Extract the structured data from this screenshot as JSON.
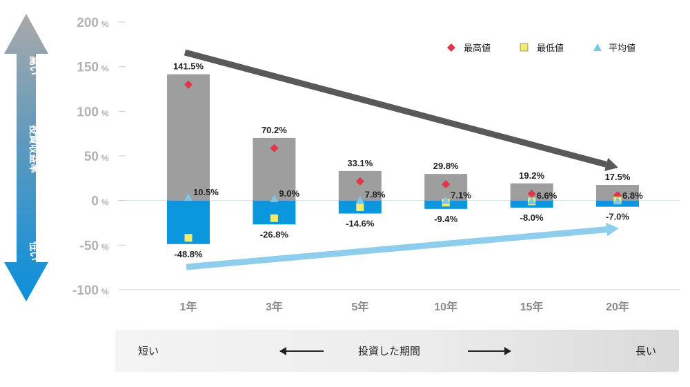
{
  "chart_data": {
    "type": "bar",
    "categories": [
      "1年",
      "3年",
      "5年",
      "10年",
      "15年",
      "20年"
    ],
    "series": [
      {
        "name": "最高値",
        "values": [
          141.5,
          70.2,
          33.1,
          29.8,
          19.2,
          17.5
        ]
      },
      {
        "name": "最低値",
        "values": [
          -48.8,
          -26.8,
          -14.6,
          -9.4,
          -8.0,
          -7.0
        ]
      },
      {
        "name": "平均値",
        "values": [
          10.5,
          9.0,
          7.8,
          7.1,
          6.6,
          6.8
        ]
      }
    ],
    "max_labels": [
      "141.5%",
      "70.2%",
      "33.1%",
      "29.8%",
      "19.2%",
      "17.5%"
    ],
    "min_labels": [
      "-48.8%",
      "-26.8%",
      "-14.6%",
      "-9.4%",
      "-8.0%",
      "-7.0%"
    ],
    "avg_labels": [
      "10.5%",
      "9.0%",
      "7.8%",
      "7.1%",
      "6.6%",
      "6.8%"
    ],
    "y_ticks": [
      {
        "value": 200,
        "num": "200",
        "unit": "%"
      },
      {
        "value": 150,
        "num": "150",
        "unit": "%"
      },
      {
        "value": 100,
        "num": "100",
        "unit": "%"
      },
      {
        "value": 50,
        "num": "50",
        "unit": "%"
      },
      {
        "value": 0,
        "num": "0",
        "unit": "%"
      },
      {
        "value": -50,
        "num": "-50",
        "unit": "%"
      },
      {
        "value": -100,
        "num": "-100",
        "unit": "%"
      }
    ],
    "ylim": [
      -100,
      200
    ],
    "legend_position": "top-right",
    "colors": {
      "positive_bar": "#9e9e9e",
      "negative_bar": "#0b97dd",
      "max_marker": "#e0364a",
      "min_marker": "#f3eb6c",
      "avg_marker": "#7cc6ea",
      "down_trend_arrow": "#595959",
      "up_trend_arrow": "#8fcdec"
    }
  },
  "y_axis_side": {
    "high": "高い",
    "middle": "投資収益率",
    "low": "低い"
  },
  "period_bar": {
    "short": "短い",
    "center": "投資した期間",
    "long": "長い"
  }
}
